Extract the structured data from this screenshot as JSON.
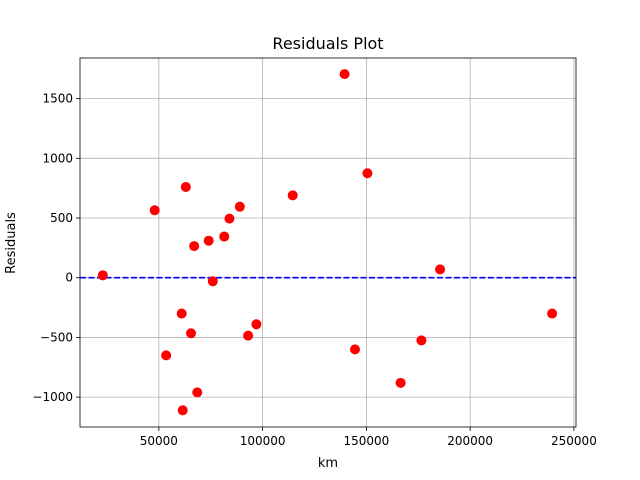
{
  "chart_data": {
    "type": "scatter",
    "title": "Residuals Plot",
    "xlabel": "km",
    "ylabel": "Residuals",
    "xlim": [
      12000,
      251000
    ],
    "ylim": [
      -1250,
      1840
    ],
    "xticks": [
      50000,
      100000,
      150000,
      200000,
      250000
    ],
    "xtick_labels": [
      "50000",
      "100000",
      "150000",
      "200000",
      "250000"
    ],
    "yticks": [
      -1000,
      -500,
      0,
      500,
      1000,
      1500
    ],
    "ytick_labels": [
      "−1000",
      "−500",
      "0",
      "500",
      "1000",
      "1500"
    ],
    "grid": true,
    "reference_line": {
      "y": 0,
      "style": "dashed",
      "color": "#0000ff"
    },
    "marker_color": "#ff0000",
    "points": [
      {
        "x": 23000,
        "y": 20
      },
      {
        "x": 48000,
        "y": 565
      },
      {
        "x": 53500,
        "y": -650
      },
      {
        "x": 61000,
        "y": -300
      },
      {
        "x": 61500,
        "y": -1110
      },
      {
        "x": 63000,
        "y": 760
      },
      {
        "x": 65500,
        "y": -465
      },
      {
        "x": 67000,
        "y": 265
      },
      {
        "x": 68500,
        "y": -960
      },
      {
        "x": 74000,
        "y": 310
      },
      {
        "x": 76000,
        "y": -30
      },
      {
        "x": 81500,
        "y": 345
      },
      {
        "x": 84000,
        "y": 495
      },
      {
        "x": 89000,
        "y": 595
      },
      {
        "x": 93000,
        "y": -485
      },
      {
        "x": 97000,
        "y": -390
      },
      {
        "x": 114500,
        "y": 690
      },
      {
        "x": 139500,
        "y": 1705
      },
      {
        "x": 144500,
        "y": -600
      },
      {
        "x": 150500,
        "y": 875
      },
      {
        "x": 166500,
        "y": -880
      },
      {
        "x": 176500,
        "y": -525
      },
      {
        "x": 185500,
        "y": 70
      },
      {
        "x": 239500,
        "y": -300
      }
    ]
  }
}
